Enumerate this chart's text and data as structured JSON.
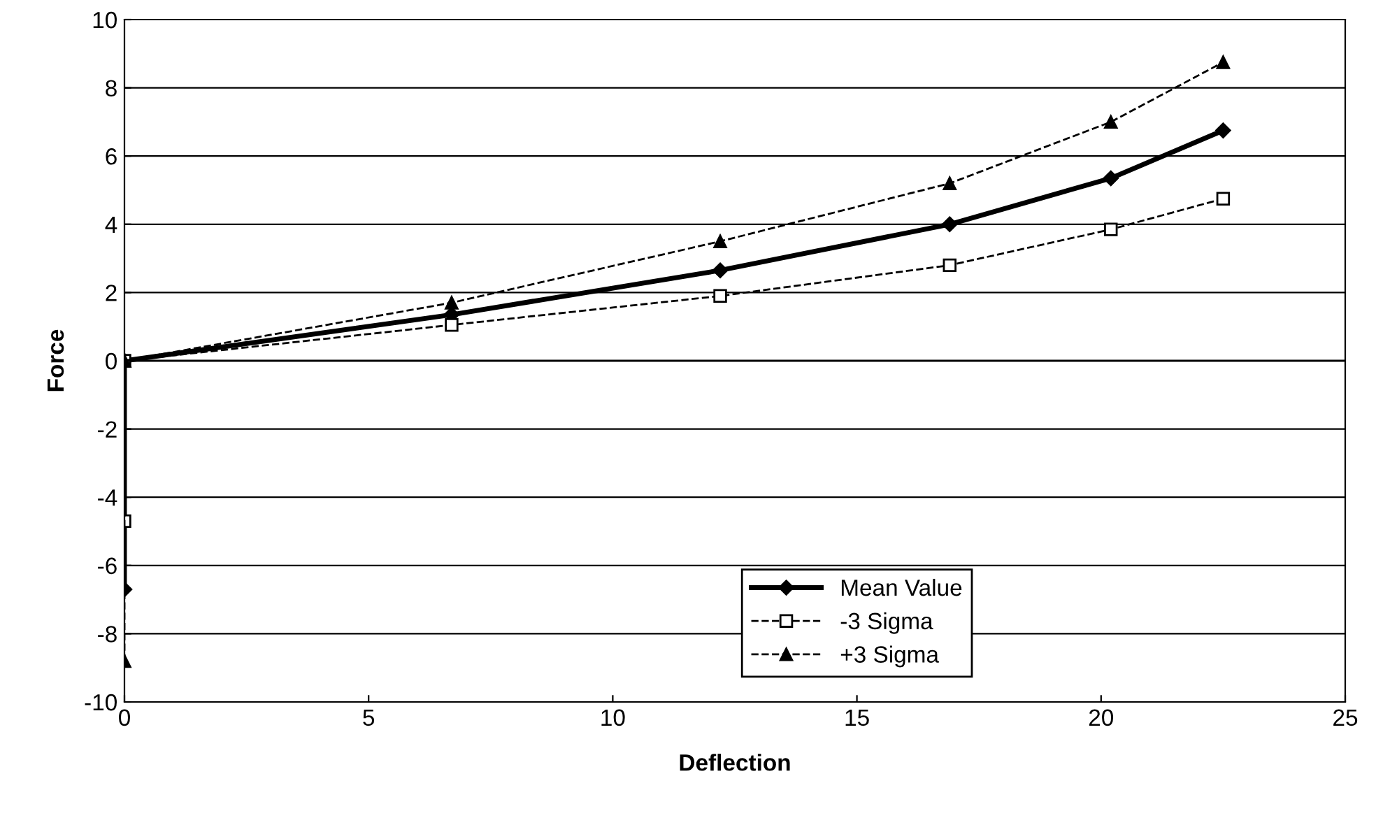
{
  "chart_data": {
    "type": "line",
    "xlabel": "Deflection",
    "ylabel": "Force",
    "xlim": [
      0,
      25
    ],
    "xticks": [
      0,
      5,
      10,
      15,
      20,
      25
    ],
    "ylim": [
      -10,
      10
    ],
    "yticks": [
      -10,
      -8,
      -6,
      -4,
      -2,
      0,
      2,
      4,
      6,
      8,
      10
    ],
    "grid": "y",
    "legend": "bottom",
    "series": [
      {
        "name": "Mean Value",
        "color": "#000000",
        "marker": "diamond",
        "line_style": "solid",
        "x": [
          0,
          0,
          6.7,
          12.2,
          16.9,
          20.2,
          22.5
        ],
        "values": [
          -6.7,
          0,
          1.35,
          2.65,
          4.0,
          5.35,
          6.75
        ]
      },
      {
        "name": "-3 Sigma",
        "color": "#000000",
        "marker": "square",
        "line_style": "dashed",
        "x": [
          0,
          0,
          6.7,
          12.2,
          16.9,
          20.2,
          22.5
        ],
        "values": [
          -4.7,
          0,
          1.05,
          1.9,
          2.8,
          3.85,
          4.75
        ]
      },
      {
        "name": "+3 Sigma",
        "color": "#000000",
        "marker": "triangle",
        "line_style": "dashed",
        "x": [
          0,
          0,
          6.7,
          12.2,
          16.9,
          20.2,
          22.5
        ],
        "values": [
          -8.8,
          0,
          1.7,
          3.5,
          5.2,
          7.0,
          8.75
        ]
      }
    ]
  }
}
